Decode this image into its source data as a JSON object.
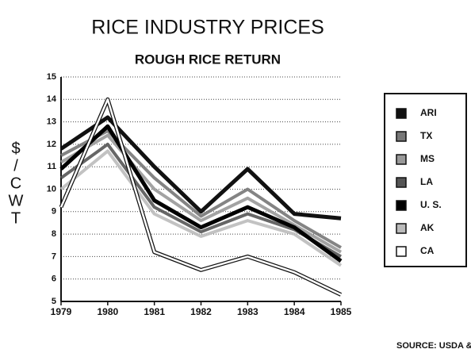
{
  "chart_data": {
    "type": "line",
    "title": "RICE INDUSTRY PRICES",
    "subtitle": "ROUGH RICE RETURN",
    "y_label": [
      "$",
      "/",
      "C",
      "W",
      "T"
    ],
    "source": "SOURCE: USDA & ARI DATA",
    "x": [
      1979,
      1980,
      1981,
      1982,
      1983,
      1984,
      1985
    ],
    "xlim": [
      1979,
      1985
    ],
    "xticks": [
      1979,
      1980,
      1981,
      1982,
      1983,
      1984,
      1985
    ],
    "ylim": [
      5,
      15
    ],
    "yticks": [
      5,
      6,
      7,
      8,
      9,
      10,
      11,
      12,
      13,
      14,
      15
    ],
    "grid": true,
    "legend": "right",
    "series": [
      {
        "name": "ARI",
        "color": "#111111",
        "values": [
          11.8,
          13.2,
          11.0,
          9.0,
          10.9,
          8.9,
          8.7
        ]
      },
      {
        "name": "TX",
        "color": "#777777",
        "values": [
          11.5,
          12.6,
          10.5,
          8.8,
          10.0,
          8.6,
          7.4
        ]
      },
      {
        "name": "MS",
        "color": "#999999",
        "values": [
          11.2,
          12.4,
          10.0,
          8.6,
          9.6,
          8.4,
          7.2
        ]
      },
      {
        "name": "LA",
        "color": "#555555",
        "values": [
          10.5,
          12.0,
          9.2,
          8.1,
          8.9,
          8.2,
          7.0
        ]
      },
      {
        "name": "U. S.",
        "color": "#000000",
        "values": [
          10.9,
          12.8,
          9.5,
          8.3,
          9.2,
          8.3,
          6.8
        ]
      },
      {
        "name": "AK",
        "color": "#bbbbbb",
        "values": [
          10.0,
          11.7,
          8.9,
          7.9,
          8.6,
          8.0,
          6.6
        ]
      },
      {
        "name": "CA",
        "color": "#ffffff",
        "values": [
          9.2,
          14.0,
          7.2,
          6.4,
          7.0,
          6.3,
          5.3
        ]
      }
    ]
  }
}
